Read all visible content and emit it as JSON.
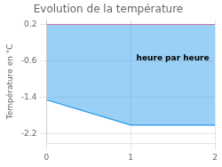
{
  "chart_data": {
    "type": "area",
    "title": "Evolution de la température",
    "ylabel": "Température en °C",
    "x": [
      0,
      1.0,
      1.0,
      2.0
    ],
    "values": [
      -1.45,
      -2.0,
      -2.0,
      -2.0
    ],
    "top": 0.2,
    "xlim": [
      0,
      2
    ],
    "ylim": [
      -2.4,
      0.3
    ],
    "xticks": [
      0,
      1,
      2
    ],
    "yticks": [
      0.2,
      -0.6,
      -1.4,
      -2.2
    ],
    "grid": true,
    "annotations": [
      {
        "text": "heure par heure",
        "x": 1.5,
        "y": -0.55
      }
    ]
  }
}
